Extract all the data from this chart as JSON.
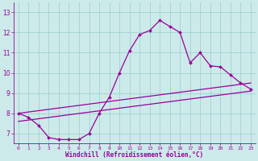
{
  "xlabel": "Windchill (Refroidissement éolien,°C)",
  "bg_color": "#cceaea",
  "line_color": "#990099",
  "grid_color": "#99cccc",
  "xlim": [
    -0.5,
    23.5
  ],
  "ylim": [
    6.5,
    13.5
  ],
  "yticks": [
    7,
    8,
    9,
    10,
    11,
    12,
    13
  ],
  "xticks": [
    0,
    1,
    2,
    3,
    4,
    5,
    6,
    7,
    8,
    9,
    10,
    11,
    12,
    13,
    14,
    15,
    16,
    17,
    18,
    19,
    20,
    21,
    22,
    23
  ],
  "line1_x": [
    0,
    1,
    2,
    3,
    4,
    5,
    6,
    7,
    8,
    9,
    10,
    11,
    12,
    13,
    14,
    15,
    16,
    17,
    18,
    19,
    20,
    21,
    22,
    23
  ],
  "line1_y": [
    8.0,
    7.8,
    7.4,
    6.8,
    6.7,
    6.7,
    6.7,
    7.0,
    8.0,
    8.8,
    10.0,
    11.1,
    11.9,
    12.1,
    12.6,
    12.3,
    12.0,
    10.5,
    11.0,
    10.35,
    10.3,
    9.9,
    9.5,
    9.2
  ],
  "line2_x": [
    0,
    23
  ],
  "line2_y": [
    8.0,
    9.5
  ],
  "line3_x": [
    0,
    23
  ],
  "line3_y": [
    7.6,
    9.1
  ]
}
